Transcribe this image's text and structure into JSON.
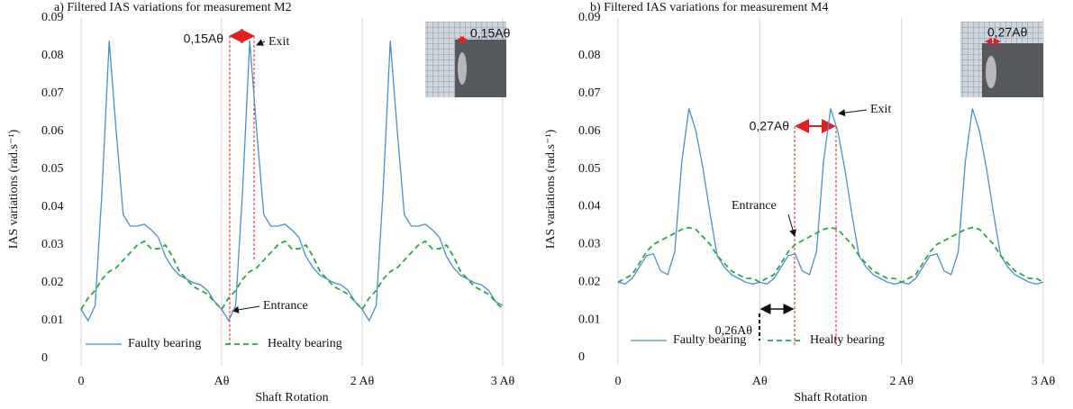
{
  "chart_data": [
    {
      "type": "line",
      "title": "a) Filtered IAS variations for measurement M2",
      "x_label": "Shaft Rotation",
      "y_label": "IAS variations (rad.s⁻¹)",
      "xlim": [
        0,
        3
      ],
      "ylim": [
        0,
        0.09
      ],
      "xticks": [
        0,
        {
          "value": 1,
          "label": "Aθ"
        },
        {
          "value": 2,
          "label": "2 Aθ"
        },
        {
          "value": 3,
          "label": "3 Aθ"
        }
      ],
      "yticks": [
        0,
        0.01,
        0.02,
        0.03,
        0.04,
        0.05,
        0.06,
        0.07,
        0.08,
        0.09
      ],
      "grid": true,
      "legend": "bottom-left",
      "x": [
        0,
        0.05,
        0.1,
        0.15,
        0.2,
        0.25,
        0.3,
        0.35,
        0.4,
        0.45,
        0.5,
        0.55,
        0.6,
        0.65,
        0.7,
        0.75,
        0.8,
        0.85,
        0.9,
        0.95,
        1,
        1.05,
        1.1,
        1.15,
        1.2,
        1.25,
        1.3,
        1.35,
        1.4,
        1.45,
        1.5,
        1.55,
        1.6,
        1.65,
        1.7,
        1.75,
        1.8,
        1.85,
        1.9,
        1.95,
        2,
        2.05,
        2.1,
        2.15,
        2.2,
        2.25,
        2.3,
        2.35,
        2.4,
        2.45,
        2.5,
        2.55,
        2.6,
        2.65,
        2.7,
        2.75,
        2.8,
        2.85,
        2.9,
        2.95,
        3
      ],
      "series": [
        {
          "name": "Faulty bearing",
          "color": "#4a90c8",
          "dash": false,
          "values": [
            0.013,
            0.01,
            0.014,
            0.045,
            0.084,
            0.06,
            0.038,
            0.035,
            0.035,
            0.0355,
            0.034,
            0.032,
            0.027,
            0.024,
            0.022,
            0.021,
            0.02,
            0.0195,
            0.018,
            0.015,
            0.013,
            0.01,
            0.014,
            0.045,
            0.084,
            0.06,
            0.038,
            0.035,
            0.035,
            0.0355,
            0.034,
            0.032,
            0.027,
            0.024,
            0.022,
            0.021,
            0.02,
            0.0195,
            0.018,
            0.015,
            0.013,
            0.01,
            0.014,
            0.045,
            0.084,
            0.06,
            0.038,
            0.035,
            0.035,
            0.0355,
            0.034,
            0.032,
            0.027,
            0.024,
            0.022,
            0.021,
            0.02,
            0.0195,
            0.018,
            0.015,
            0.014
          ]
        },
        {
          "name": "Healty bearing",
          "color": "#2aa845",
          "dash": true,
          "values": [
            0.013,
            0.016,
            0.018,
            0.021,
            0.023,
            0.024,
            0.026,
            0.028,
            0.03,
            0.031,
            0.029,
            0.029,
            0.03,
            0.027,
            0.023,
            0.021,
            0.019,
            0.018,
            0.017,
            0.015,
            0.013,
            0.016,
            0.018,
            0.021,
            0.023,
            0.024,
            0.026,
            0.028,
            0.03,
            0.031,
            0.029,
            0.029,
            0.03,
            0.027,
            0.023,
            0.021,
            0.019,
            0.018,
            0.017,
            0.015,
            0.013,
            0.016,
            0.018,
            0.021,
            0.023,
            0.024,
            0.026,
            0.028,
            0.03,
            0.031,
            0.029,
            0.029,
            0.03,
            0.027,
            0.023,
            0.021,
            0.019,
            0.018,
            0.017,
            0.015,
            0.013
          ]
        }
      ],
      "annotations": [
        "0,15Aθ",
        "Exit",
        "Entrance",
        "0,15Aθ"
      ]
    },
    {
      "type": "line",
      "title": "b) Filtered IAS variations for measurement M4",
      "x_label": "Shaft Rotation",
      "y_label": "IAS variations (rad.s⁻¹)",
      "xlim": [
        0,
        3
      ],
      "ylim": [
        0,
        0.09
      ],
      "xticks": [
        0,
        {
          "value": 1,
          "label": "Aθ"
        },
        {
          "value": 2,
          "label": "2 Aθ"
        },
        {
          "value": 3,
          "label": "3 Aθ"
        }
      ],
      "yticks": [
        0,
        0.01,
        0.02,
        0.03,
        0.04,
        0.05,
        0.06,
        0.07,
        0.08,
        0.09
      ],
      "grid": true,
      "legend": "bottom-left",
      "x": [
        0,
        0.05,
        0.1,
        0.15,
        0.2,
        0.25,
        0.3,
        0.35,
        0.4,
        0.45,
        0.5,
        0.55,
        0.6,
        0.65,
        0.7,
        0.75,
        0.8,
        0.85,
        0.9,
        0.95,
        1,
        1.05,
        1.1,
        1.15,
        1.2,
        1.25,
        1.3,
        1.35,
        1.4,
        1.45,
        1.5,
        1.55,
        1.6,
        1.65,
        1.7,
        1.75,
        1.8,
        1.85,
        1.9,
        1.95,
        2,
        2.05,
        2.1,
        2.15,
        2.2,
        2.25,
        2.3,
        2.35,
        2.4,
        2.45,
        2.5,
        2.55,
        2.6,
        2.65,
        2.7,
        2.75,
        2.8,
        2.85,
        2.9,
        2.95,
        3
      ],
      "series": [
        {
          "name": "Faulty bearing",
          "color": "#4a90c8",
          "dash": false,
          "values": [
            0.02,
            0.0195,
            0.021,
            0.024,
            0.027,
            0.0275,
            0.023,
            0.022,
            0.028,
            0.052,
            0.066,
            0.06,
            0.05,
            0.038,
            0.027,
            0.024,
            0.022,
            0.021,
            0.02,
            0.0195,
            0.02,
            0.0195,
            0.021,
            0.024,
            0.027,
            0.0275,
            0.023,
            0.022,
            0.028,
            0.052,
            0.066,
            0.06,
            0.05,
            0.038,
            0.027,
            0.024,
            0.022,
            0.021,
            0.02,
            0.0195,
            0.02,
            0.0195,
            0.021,
            0.024,
            0.027,
            0.0275,
            0.023,
            0.022,
            0.028,
            0.052,
            0.066,
            0.06,
            0.05,
            0.038,
            0.027,
            0.024,
            0.022,
            0.021,
            0.02,
            0.0195,
            0.02
          ]
        },
        {
          "name": "Healty bearing",
          "color": "#2aa845",
          "dash": true,
          "values": [
            0.02,
            0.021,
            0.022,
            0.025,
            0.028,
            0.03,
            0.031,
            0.032,
            0.033,
            0.034,
            0.0345,
            0.034,
            0.032,
            0.03,
            0.027,
            0.025,
            0.023,
            0.022,
            0.021,
            0.021,
            0.02,
            0.021,
            0.022,
            0.025,
            0.028,
            0.03,
            0.031,
            0.032,
            0.033,
            0.034,
            0.0345,
            0.034,
            0.032,
            0.03,
            0.027,
            0.025,
            0.023,
            0.022,
            0.021,
            0.021,
            0.02,
            0.021,
            0.022,
            0.025,
            0.028,
            0.03,
            0.031,
            0.032,
            0.033,
            0.034,
            0.0345,
            0.034,
            0.032,
            0.03,
            0.027,
            0.025,
            0.023,
            0.022,
            0.021,
            0.021,
            0.02
          ]
        }
      ],
      "annotations": [
        "0,27Aθ",
        "Exit",
        "Entrance",
        "0,26Aθ",
        "0,27Aθ"
      ]
    }
  ]
}
